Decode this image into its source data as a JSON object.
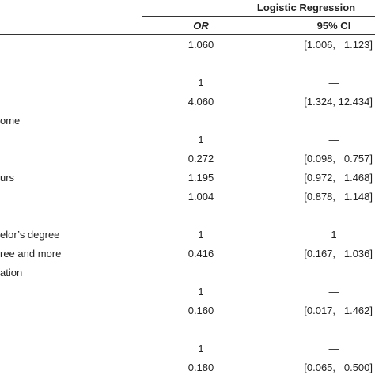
{
  "header": {
    "group": "Logistic Regression",
    "columns": [
      "OR",
      "95% CI"
    ]
  },
  "table": {
    "rows": [
      {
        "or": "1.060",
        "ci": "[1.006,   1.123]"
      },
      {},
      {
        "or": "1",
        "ci": "—"
      },
      {
        "or": "4.060",
        "ci": "[1.324, 12.434]"
      },
      {
        "label": "ome"
      },
      {
        "or": "1",
        "ci": "—"
      },
      {
        "or": "0.272",
        "ci": "[0.098,   0.757]"
      },
      {
        "label": "urs",
        "or": "1.195",
        "ci": "[0.972,   1.468]"
      },
      {
        "or": "1.004",
        "ci": "[0.878,   1.148]"
      },
      {},
      {
        "label": "elor’s degree",
        "or": "1",
        "ci": "1"
      },
      {
        "label": "ree and more",
        "or": "0.416",
        "ci": "[0.167,   1.036]"
      },
      {
        "label": "ation"
      },
      {
        "or": "1",
        "ci": "—"
      },
      {
        "or": "0.160",
        "ci": "[0.017,   1.462]"
      },
      {},
      {
        "or": "1",
        "ci": "—"
      },
      {
        "or": "0.180",
        "ci": "[0.065,   0.500]"
      }
    ]
  }
}
